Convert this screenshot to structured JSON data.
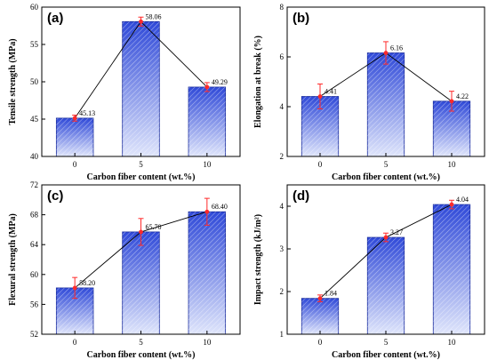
{
  "chart_data": [
    {
      "panel": "(a)",
      "type": "bar",
      "categories": [
        "0",
        "5",
        "10"
      ],
      "values": [
        45.13,
        58.06,
        49.29
      ],
      "errors": [
        0.4,
        0.6,
        0.6
      ],
      "labels": [
        "45.13",
        "58.06",
        "49.29"
      ],
      "xlabel": "Carbon fiber content (wt.%)",
      "ylabel": "Tensile strength (MPa)",
      "ylim": [
        40,
        60
      ],
      "yticks": [
        "40",
        "45",
        "50",
        "55",
        "60"
      ],
      "ytick_values": [
        40,
        45,
        50,
        55,
        60
      ]
    },
    {
      "panel": "(b)",
      "type": "bar",
      "categories": [
        "0",
        "5",
        "10"
      ],
      "values": [
        4.41,
        6.16,
        4.22
      ],
      "errors": [
        0.5,
        0.45,
        0.4
      ],
      "labels": [
        "4.41",
        "6.16",
        "4.22"
      ],
      "xlabel": "Carbon fiber content (wt.%)",
      "ylabel": "Elongation at break (%)",
      "ylim": [
        2,
        8
      ],
      "yticks": [
        "2",
        "4",
        "6",
        "8"
      ],
      "ytick_values": [
        2,
        4,
        6,
        8
      ]
    },
    {
      "panel": "(c)",
      "type": "bar",
      "categories": [
        "0",
        "5",
        "10"
      ],
      "values": [
        58.2,
        65.7,
        68.4
      ],
      "errors": [
        1.4,
        1.8,
        1.8
      ],
      "labels": [
        "58.20",
        "65.70",
        "68.40"
      ],
      "xlabel": "Carbon fiber content (wt.%)",
      "ylabel": "Flexural strength (MPa)",
      "ylim": [
        52,
        72
      ],
      "yticks": [
        "52",
        "56",
        "60",
        "64",
        "68",
        "72"
      ],
      "ytick_values": [
        52,
        56,
        60,
        64,
        68,
        72
      ]
    },
    {
      "panel": "(d)",
      "type": "bar",
      "categories": [
        "0",
        "5",
        "10"
      ],
      "values": [
        1.84,
        3.27,
        4.04
      ],
      "errors": [
        0.08,
        0.1,
        0.1
      ],
      "labels": [
        "1.84",
        "3.27",
        "4.04"
      ],
      "xlabel": "Carbon fiber content (wt.%)",
      "ylabel": "Impact strength (kJ/m²)",
      "ylim": [
        1,
        4.5
      ],
      "yticks": [
        "1",
        "2",
        "3",
        "4"
      ],
      "ytick_values": [
        1,
        2,
        3,
        4
      ]
    }
  ],
  "colors": {
    "bar_top": "#2f49d8",
    "bar_bottom": "#dfe5fb",
    "bar_edge": "#1c2e9e",
    "hatch": "#ffffff",
    "error_bar": "#ff2a2a",
    "point": "#ff2a2a",
    "trend_line": "#000000"
  }
}
